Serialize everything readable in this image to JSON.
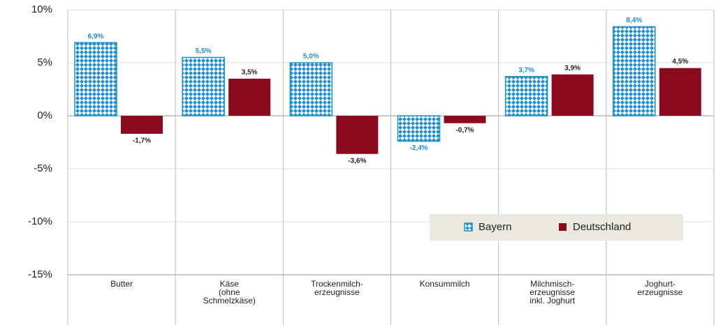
{
  "chart_data": {
    "type": "bar",
    "categories": [
      [
        "Butter"
      ],
      [
        "Käse",
        "(ohne",
        "Schmelzkäse)"
      ],
      [
        "Trockenmilch-",
        "erzeugnisse"
      ],
      [
        "Konsummilch"
      ],
      [
        "Milchmisch-",
        "erzeugnisse",
        "inkl. Joghurt"
      ],
      [
        "Joghurt-",
        "erzeugnisse"
      ]
    ],
    "series": [
      {
        "name": "Bayern",
        "color": "#1a8fd0",
        "pattern": "diamonds",
        "values": [
          6.9,
          5.5,
          5.0,
          -2.4,
          3.7,
          8.4
        ],
        "value_labels": [
          "6,9%",
          "5,5%",
          "5,0%",
          "-2,4%",
          "3,7%",
          "8,4%"
        ]
      },
      {
        "name": "Deutschland",
        "color": "#8b0a1e",
        "values": [
          -1.7,
          3.5,
          -3.6,
          -0.7,
          3.9,
          4.5
        ],
        "value_labels": [
          "-1,7%",
          "3,5%",
          "-3,6%",
          "-0,7%",
          "3,9%",
          "4,5%"
        ]
      }
    ],
    "ylim": [
      -15,
      10
    ],
    "yticks": [
      {
        "value": -15,
        "label": "-15%"
      },
      {
        "value": -10,
        "label": "-10%"
      },
      {
        "value": -5,
        "label": "-5%"
      },
      {
        "value": 0,
        "label": "0%"
      },
      {
        "value": 5,
        "label": "5%"
      },
      {
        "value": 10,
        "label": "10%"
      }
    ],
    "grid": true
  }
}
